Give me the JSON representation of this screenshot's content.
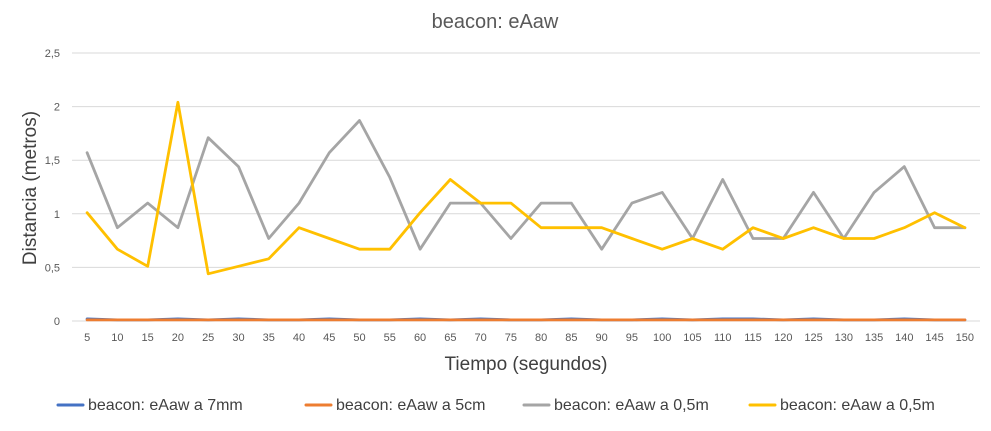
{
  "chart_data": {
    "type": "line",
    "title": "beacon: eAaw",
    "xlabel": "Tiempo (segundos)",
    "ylabel": "Distancia (metros)",
    "ylim": [
      0,
      2.5
    ],
    "y_ticks": [
      "0",
      "0,5",
      "1",
      "1,5",
      "2",
      "2,5"
    ],
    "categories": [
      "5",
      "10",
      "15",
      "20",
      "25",
      "30",
      "35",
      "40",
      "45",
      "50",
      "55",
      "60",
      "65",
      "70",
      "75",
      "80",
      "85",
      "90",
      "95",
      "100",
      "105",
      "110",
      "115",
      "120",
      "125",
      "130",
      "135",
      "140",
      "145",
      "150"
    ],
    "grid": true,
    "legend_position": "bottom",
    "series": [
      {
        "name": "beacon: eAaw a 7mm",
        "color": "#4472C4",
        "values": [
          0.02,
          0.01,
          0.01,
          0.02,
          0.01,
          0.02,
          0.01,
          0.01,
          0.02,
          0.01,
          0.01,
          0.02,
          0.01,
          0.02,
          0.01,
          0.01,
          0.02,
          0.01,
          0.01,
          0.02,
          0.01,
          0.02,
          0.02,
          0.01,
          0.02,
          0.01,
          0.01,
          0.02,
          0.01,
          0.01
        ]
      },
      {
        "name": "beacon: eAaw a 5cm",
        "color": "#ED7D31",
        "values": [
          0.01,
          0.01,
          0.01,
          0.01,
          0.01,
          0.01,
          0.01,
          0.01,
          0.01,
          0.01,
          0.01,
          0.01,
          0.01,
          0.01,
          0.01,
          0.01,
          0.01,
          0.01,
          0.01,
          0.01,
          0.01,
          0.01,
          0.01,
          0.01,
          0.01,
          0.01,
          0.01,
          0.01,
          0.01,
          0.01
        ]
      },
      {
        "name": "beacon: eAaw a 0,5m",
        "color": "#A5A5A5",
        "values": [
          1.57,
          0.87,
          1.1,
          0.87,
          1.71,
          1.44,
          0.77,
          1.1,
          1.57,
          1.87,
          1.34,
          0.67,
          1.1,
          1.1,
          0.77,
          1.1,
          1.1,
          0.67,
          1.1,
          1.2,
          0.77,
          1.32,
          0.77,
          0.77,
          1.2,
          0.77,
          1.2,
          1.44,
          0.87,
          0.87
        ]
      },
      {
        "name": "beacon: eAaw a 0,5m",
        "color": "#FFC000",
        "values": [
          1.01,
          0.67,
          0.51,
          2.04,
          0.44,
          0.51,
          0.58,
          0.87,
          0.77,
          0.67,
          0.67,
          1.01,
          1.32,
          1.1,
          1.1,
          0.87,
          0.87,
          0.87,
          0.77,
          0.67,
          0.77,
          0.67,
          0.87,
          0.77,
          0.87,
          0.77,
          0.77,
          0.87,
          1.01,
          0.87
        ]
      }
    ]
  }
}
